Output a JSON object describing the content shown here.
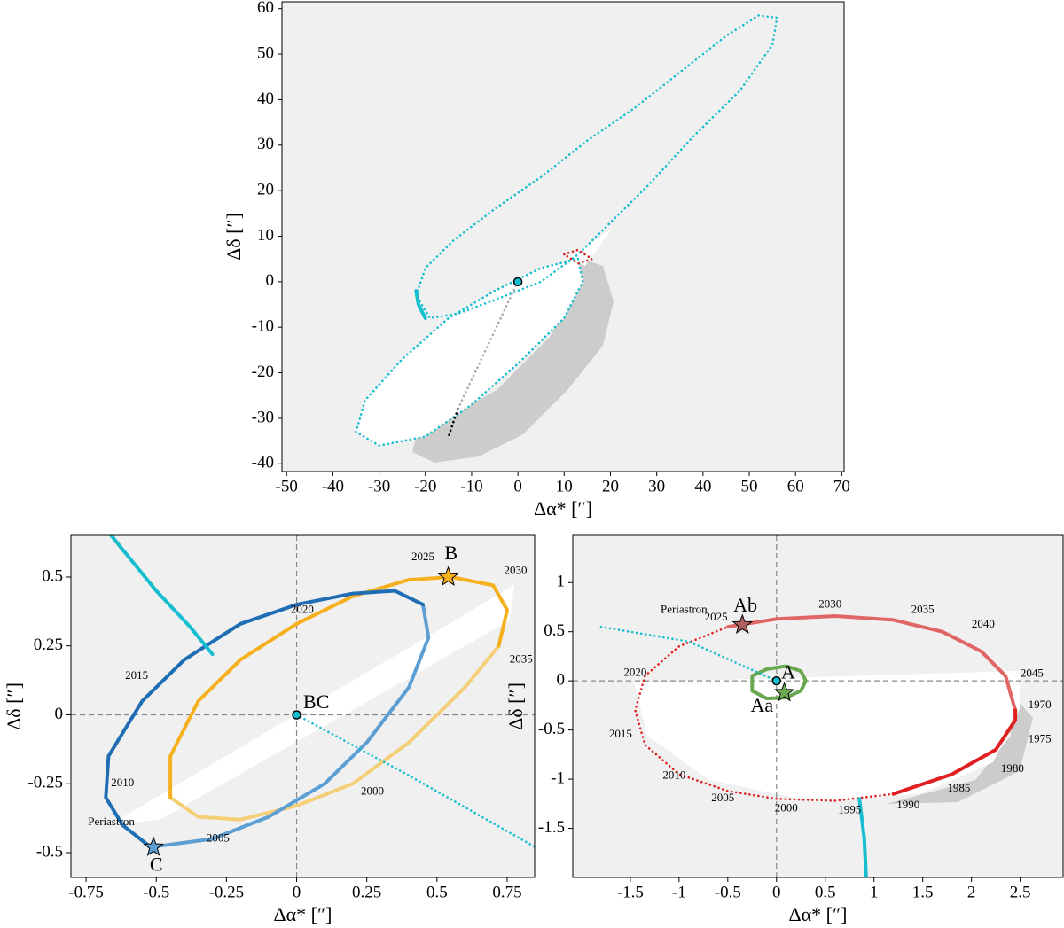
{
  "chart_data": [
    {
      "type": "line",
      "xlabel": "Δα* [″]",
      "ylabel": "Δδ [″]",
      "xlim": [
        -51,
        70.5
      ],
      "ylim": [
        -41.7,
        61.5
      ],
      "xticks": [
        -50,
        -40,
        -30,
        -20,
        -10,
        0,
        10,
        20,
        30,
        40,
        50,
        60,
        70
      ],
      "yticks": [
        -40,
        -30,
        -20,
        -10,
        0,
        10,
        20,
        30,
        40,
        50,
        60
      ],
      "background": "#f0f0f0",
      "zero_lines": false,
      "series": [
        {
          "color": "#17becf",
          "style": "dotted",
          "fill": "#ffffff",
          "x": [
            13,
            14,
            10,
            0,
            -10,
            -20,
            -30,
            -35,
            -33,
            -25,
            -15,
            -5,
            5,
            13
          ],
          "y": [
            5,
            0,
            -8,
            -18,
            -27,
            -34,
            -36,
            -33,
            -26,
            -17,
            -8,
            -2,
            3,
            5
          ]
        },
        {
          "color": "#17becf",
          "style": "dotted",
          "x": [
            -22,
            -20,
            -14,
            -5,
            5,
            15,
            25,
            35,
            45,
            52,
            56,
            55,
            48,
            38,
            28,
            18,
            13,
            5,
            -5,
            -13,
            -19,
            -22
          ],
          "y": [
            -3,
            3,
            9,
            16,
            23,
            31,
            38,
            46,
            54,
            58.5,
            58,
            52,
            42,
            32,
            21,
            11,
            6,
            0,
            -4,
            -7,
            -8,
            -3
          ]
        },
        {
          "color": "#d62728",
          "style": "dotted",
          "x": [
            10,
            13,
            16,
            13,
            10
          ],
          "y": [
            6,
            7,
            5,
            4,
            6
          ]
        },
        {
          "color": "#17becf",
          "style": "solid",
          "x": [
            -22,
            -21.5,
            -20
          ],
          "y": [
            -2,
            -5,
            -8
          ]
        },
        {
          "color": "#aaaaaa",
          "style": "dotted",
          "x": [
            0,
            -13
          ],
          "y": [
            0,
            -28
          ]
        },
        {
          "color": "#000000",
          "style": "dotted",
          "x": [
            -13,
            -15
          ],
          "y": [
            -28,
            -34
          ]
        }
      ],
      "markers": [
        {
          "shape": "circle",
          "color": "#17becf",
          "x": 0,
          "y": 0
        }
      ]
    },
    {
      "type": "line",
      "xlabel": "Δα* [″]",
      "ylabel": "Δδ [″]",
      "xlim": [
        -0.804,
        0.848
      ],
      "ylim": [
        -0.59,
        0.651
      ],
      "xticks": [
        -0.75,
        -0.5,
        -0.25,
        0,
        0.25,
        0.5,
        0.75
      ],
      "yticks": [
        -0.5,
        -0.25,
        0,
        0.25,
        0.5
      ],
      "background": "#f0f0f0",
      "zero_lines": true,
      "series": [
        {
          "color": "#f5cf78",
          "style": "solid",
          "x": [
            0.72,
            0.6,
            0.4,
            0.2,
            0,
            -0.2,
            -0.35,
            -0.45
          ],
          "y": [
            0.25,
            0.1,
            -0.1,
            -0.25,
            -0.33,
            -0.38,
            -0.37,
            -0.3
          ]
        },
        {
          "color": "#f6b01e",
          "style": "solid",
          "x": [
            -0.45,
            -0.45,
            -0.35,
            -0.2,
            0,
            0.2,
            0.4,
            0.55,
            0.7,
            0.75,
            0.72
          ],
          "y": [
            -0.3,
            -0.15,
            0.05,
            0.2,
            0.33,
            0.43,
            0.49,
            0.5,
            0.47,
            0.38,
            0.25
          ]
        },
        {
          "color": "#5d9fd3",
          "style": "solid",
          "x": [
            0.45,
            0.47,
            0.4,
            0.25,
            0.1,
            -0.1,
            -0.3,
            -0.52
          ],
          "y": [
            0.4,
            0.28,
            0.1,
            -0.1,
            -0.25,
            -0.37,
            -0.45,
            -0.48
          ]
        },
        {
          "color": "#1f6eb4",
          "style": "solid",
          "x": [
            -0.52,
            -0.62,
            -0.68,
            -0.67,
            -0.55,
            -0.4,
            -0.2,
            0,
            0.2,
            0.35,
            0.45
          ],
          "y": [
            -0.48,
            -0.4,
            -0.3,
            -0.15,
            0.05,
            0.2,
            0.33,
            0.4,
            0.44,
            0.45,
            0.4
          ]
        },
        {
          "color": "#17becf",
          "style": "solid",
          "x": [
            -0.66,
            -0.5,
            -0.38,
            -0.3
          ],
          "y": [
            0.65,
            0.45,
            0.32,
            0.22
          ]
        },
        {
          "color": "#17becf",
          "style": "dotted",
          "x": [
            0,
            0.4,
            0.85
          ],
          "y": [
            0,
            -0.22,
            -0.48
          ]
        }
      ],
      "markers": [
        {
          "shape": "circle",
          "color": "#17becf",
          "x": 0,
          "y": 0
        },
        {
          "shape": "star",
          "color": "#f6b01e",
          "x": 0.54,
          "y": 0.5
        },
        {
          "shape": "star",
          "color": "#5d9fd3",
          "x": -0.51,
          "y": -0.48
        }
      ],
      "annotations": [
        {
          "text": "BC",
          "x": 0.07,
          "y": 0.04,
          "color": "#000000",
          "size": "large"
        },
        {
          "text": "B",
          "x": 0.55,
          "y": 0.58,
          "color": "#f6b01e",
          "size": "large"
        },
        {
          "text": "C",
          "x": -0.5,
          "y": -0.55,
          "color": "#1f6eb4",
          "size": "large"
        },
        {
          "text": "2025",
          "x": 0.45,
          "y": 0.57,
          "color": "#000000",
          "size": "small"
        },
        {
          "text": "2030",
          "x": 0.78,
          "y": 0.52,
          "color": "#000000",
          "size": "small"
        },
        {
          "text": "2020",
          "x": 0.02,
          "y": 0.38,
          "color": "#000000",
          "size": "small"
        },
        {
          "text": "2015",
          "x": -0.57,
          "y": 0.14,
          "color": "#000000",
          "size": "small"
        },
        {
          "text": "2010",
          "x": -0.62,
          "y": -0.25,
          "color": "#000000",
          "size": "small"
        },
        {
          "text": "2035",
          "x": 0.8,
          "y": 0.2,
          "color": "#888888",
          "size": "small"
        },
        {
          "text": "2000",
          "x": 0.27,
          "y": -0.28,
          "color": "#888888",
          "size": "small"
        },
        {
          "text": "2005",
          "x": -0.28,
          "y": -0.45,
          "color": "#888888",
          "size": "small"
        },
        {
          "text": "Periastron",
          "x": -0.66,
          "y": -0.39,
          "color": "#888888",
          "size": "small"
        }
      ]
    },
    {
      "type": "line",
      "xlabel": "Δα* [″]",
      "ylabel": "Δδ [″]",
      "xlim": [
        -2.09,
        2.94
      ],
      "ylim": [
        -2.0,
        1.48
      ],
      "xticks": [
        -1.5,
        -1,
        -0.5,
        0,
        0.5,
        1,
        1.5,
        2,
        2.5
      ],
      "yticks": [
        -1.5,
        -1,
        -0.5,
        0,
        0.5,
        1
      ],
      "background": "#f0f0f0",
      "zero_lines": true,
      "series": [
        {
          "color": "#e06666",
          "style": "solid",
          "x": [
            -0.5,
            0,
            0.6,
            1.2,
            1.7,
            2.1,
            2.35,
            2.45
          ],
          "y": [
            0.55,
            0.63,
            0.66,
            0.62,
            0.5,
            0.3,
            0.05,
            -0.3
          ]
        },
        {
          "color": "#e02020",
          "style": "solid",
          "x": [
            2.45,
            2.45,
            2.25,
            1.8,
            1.2
          ],
          "y": [
            -0.3,
            -0.4,
            -0.7,
            -0.95,
            -1.15
          ]
        },
        {
          "color": "#e02020",
          "style": "dotted",
          "x": [
            1.2,
            0.6,
            0,
            -0.5,
            -1.0,
            -1.35,
            -1.45,
            -1.35,
            -1.0,
            -0.5
          ],
          "y": [
            -1.15,
            -1.22,
            -1.2,
            -1.12,
            -0.95,
            -0.65,
            -0.3,
            0.05,
            0.35,
            0.55
          ]
        },
        {
          "color": "#6aa84f",
          "style": "solid",
          "x": [
            0.3,
            0.25,
            0.1,
            -0.1,
            -0.25,
            -0.25,
            -0.1,
            0.1,
            0.25,
            0.3
          ],
          "y": [
            0,
            0.1,
            0.15,
            0.12,
            0.05,
            -0.1,
            -0.18,
            -0.17,
            -0.1,
            0
          ]
        },
        {
          "color": "#17becf",
          "style": "dotted",
          "x": [
            -1.8,
            -0.9,
            0
          ],
          "y": [
            0.55,
            0.4,
            0
          ]
        },
        {
          "color": "#17becf",
          "style": "solid",
          "x": [
            0.85,
            0.9,
            0.92
          ],
          "y": [
            -1.2,
            -1.6,
            -2.0
          ]
        }
      ],
      "markers": [
        {
          "shape": "circle",
          "color": "#17becf",
          "x": 0,
          "y": 0
        },
        {
          "shape": "star",
          "color": "#6aa84f",
          "x": 0.08,
          "y": -0.12
        },
        {
          "shape": "star",
          "color": "#b06060",
          "x": -0.35,
          "y": 0.57
        }
      ],
      "annotations": [
        {
          "text": "A",
          "x": 0.12,
          "y": 0.07,
          "color": "#000000",
          "size": "large"
        },
        {
          "text": "Ab",
          "x": -0.32,
          "y": 0.75,
          "color": "#e02020",
          "size": "large"
        },
        {
          "text": "Aa",
          "x": -0.15,
          "y": -0.27,
          "color": "#6aa84f",
          "size": "large"
        },
        {
          "text": "Periastron",
          "x": -0.95,
          "y": 0.72,
          "color": "#888888",
          "size": "small"
        },
        {
          "text": "2025",
          "x": -0.62,
          "y": 0.64,
          "color": "#888888",
          "size": "small"
        },
        {
          "text": "2030",
          "x": 0.55,
          "y": 0.77,
          "color": "#888888",
          "size": "small"
        },
        {
          "text": "2035",
          "x": 1.5,
          "y": 0.72,
          "color": "#888888",
          "size": "small"
        },
        {
          "text": "2040",
          "x": 2.12,
          "y": 0.57,
          "color": "#888888",
          "size": "small"
        },
        {
          "text": "2045",
          "x": 2.62,
          "y": 0.07,
          "color": "#000000",
          "size": "small"
        },
        {
          "text": "1970",
          "x": 2.7,
          "y": -0.25,
          "color": "#000000",
          "size": "small"
        },
        {
          "text": "1975",
          "x": 2.7,
          "y": -0.6,
          "color": "#000000",
          "size": "small"
        },
        {
          "text": "1980",
          "x": 2.42,
          "y": -0.9,
          "color": "#000000",
          "size": "small"
        },
        {
          "text": "1985",
          "x": 1.87,
          "y": -1.1,
          "color": "#000000",
          "size": "small"
        },
        {
          "text": "1990",
          "x": 1.35,
          "y": -1.27,
          "color": "#000000",
          "size": "small"
        },
        {
          "text": "1995",
          "x": 0.75,
          "y": -1.32,
          "color": "#000000",
          "size": "small"
        },
        {
          "text": "2000",
          "x": 0.1,
          "y": -1.3,
          "color": "#000000",
          "size": "small"
        },
        {
          "text": "2005",
          "x": -0.55,
          "y": -1.2,
          "color": "#000000",
          "size": "small"
        },
        {
          "text": "2010",
          "x": -1.05,
          "y": -0.97,
          "color": "#000000",
          "size": "small"
        },
        {
          "text": "2015",
          "x": -1.6,
          "y": -0.55,
          "color": "#000000",
          "size": "small"
        },
        {
          "text": "2020",
          "x": -1.45,
          "y": 0.08,
          "color": "#888888",
          "size": "small"
        }
      ]
    }
  ]
}
